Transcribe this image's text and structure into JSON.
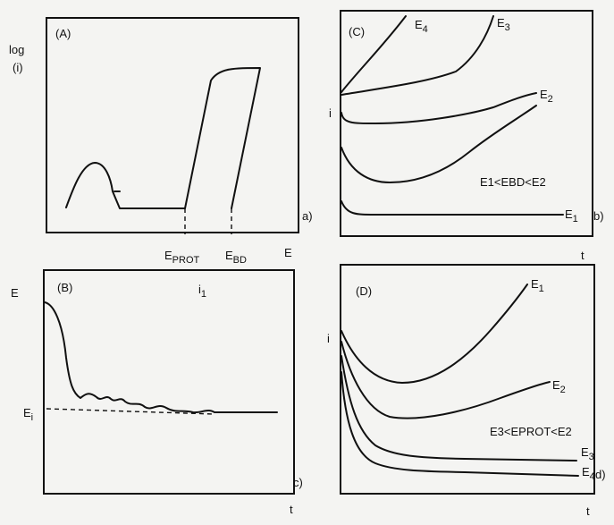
{
  "chart_data": [
    {
      "panel": "A",
      "type": "line",
      "title": "(A)",
      "xlabel": "E",
      "ylabel": "log\n(i)",
      "markers": [
        "E_PROT",
        "E_BD"
      ],
      "corner_label": "a)"
    },
    {
      "panel": "C",
      "type": "line",
      "title": "(C)",
      "xlabel": "t",
      "ylabel": "i",
      "series": [
        {
          "name": "E4"
        },
        {
          "name": "E3"
        },
        {
          "name": "E2"
        },
        {
          "name": "E1"
        }
      ],
      "annotation": "E1<EBD<E2",
      "corner_label": "b)"
    },
    {
      "panel": "B",
      "type": "line",
      "title": "(B)",
      "xlabel": "t",
      "ylabel": "E",
      "annotation": "i1",
      "level_label": "Ei",
      "corner_label": "c)"
    },
    {
      "panel": "D",
      "type": "line",
      "title": "(D)",
      "xlabel": "t",
      "ylabel": "i",
      "series": [
        {
          "name": "E1"
        },
        {
          "name": "E2"
        },
        {
          "name": "E3"
        },
        {
          "name": "E4"
        }
      ],
      "annotation": "E3<EPROT<E2",
      "corner_label": "d)"
    }
  ]
}
